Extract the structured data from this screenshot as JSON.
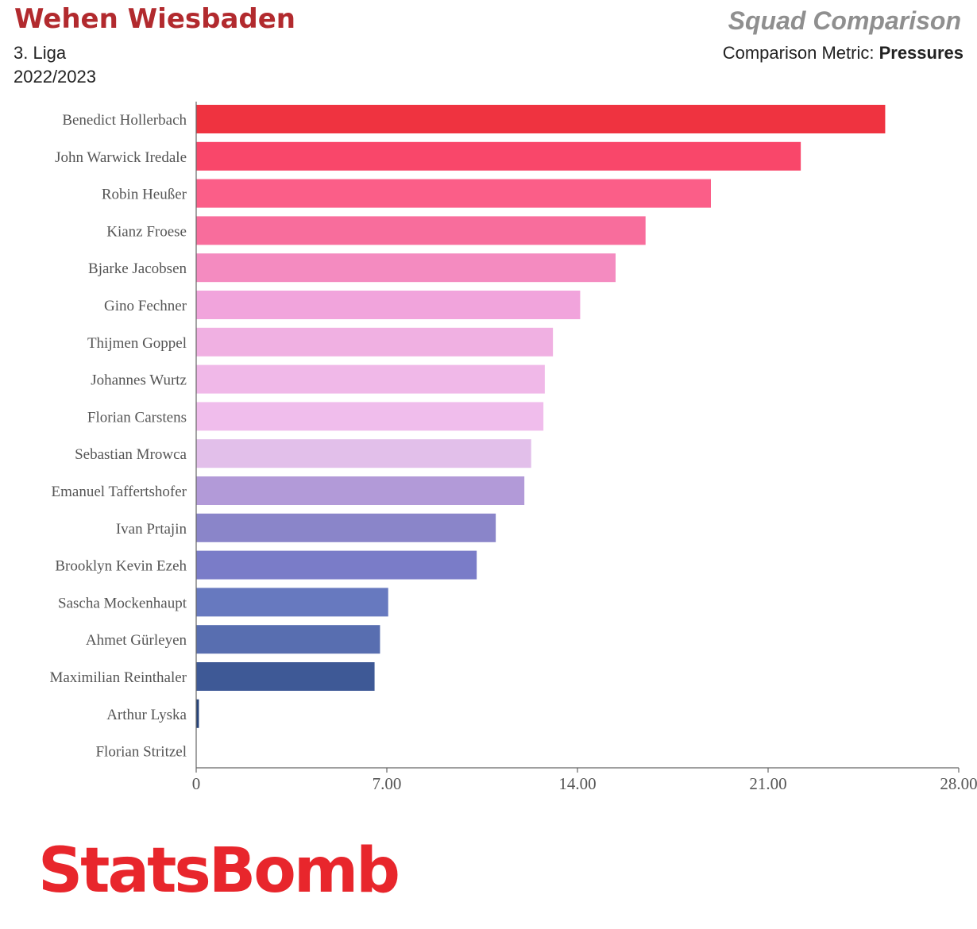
{
  "header": {
    "team": "Wehen Wiesbaden",
    "league": "3. Liga",
    "season": "2022/2023",
    "title": "Squad Comparison",
    "metric_prefix": "Comparison Metric: ",
    "metric_name": "Pressures"
  },
  "logo": {
    "text": "StatsBomb",
    "color": "#e8262c"
  },
  "chart_data": {
    "type": "bar",
    "orientation": "horizontal",
    "categories": [
      "Benedict Hollerbach",
      "John Warwick Iredale",
      "Robin Heußer",
      "Kianz Froese",
      "Bjarke Jacobsen",
      "Gino Fechner",
      "Thijmen Goppel",
      "Johannes Wurtz",
      "Florian Carstens",
      "Sebastian Mrowca",
      "Emanuel Taffertshofer",
      "Ivan Prtajin",
      "Brooklyn Kevin Ezeh",
      "Sascha Mockenhaupt",
      "Ahmet Gürleyen",
      "Maximilian Reinthaler",
      "Arthur Lyska",
      "Florian Stritzel"
    ],
    "values": [
      25.3,
      22.2,
      18.9,
      16.5,
      15.4,
      14.1,
      13.1,
      12.8,
      12.75,
      12.3,
      12.05,
      11.0,
      10.3,
      7.05,
      6.75,
      6.55,
      0.1,
      0.0
    ],
    "colors": [
      "#ef3340",
      "#f9476a",
      "#fb5e88",
      "#f86d9c",
      "#f48bc0",
      "#f1a4dc",
      "#f0b0e2",
      "#f0b8e8",
      "#f0bdec",
      "#e2bfea",
      "#b29ad8",
      "#8a85c9",
      "#7a7cc8",
      "#6779bf",
      "#586eb0",
      "#3e5996",
      "#27447a",
      "#27447a"
    ],
    "xlim": [
      0,
      28
    ],
    "xticks": [
      0,
      7,
      14,
      21,
      28
    ],
    "xtick_labels": [
      "0",
      "7.00",
      "14.00",
      "21.00",
      "28.00"
    ]
  }
}
